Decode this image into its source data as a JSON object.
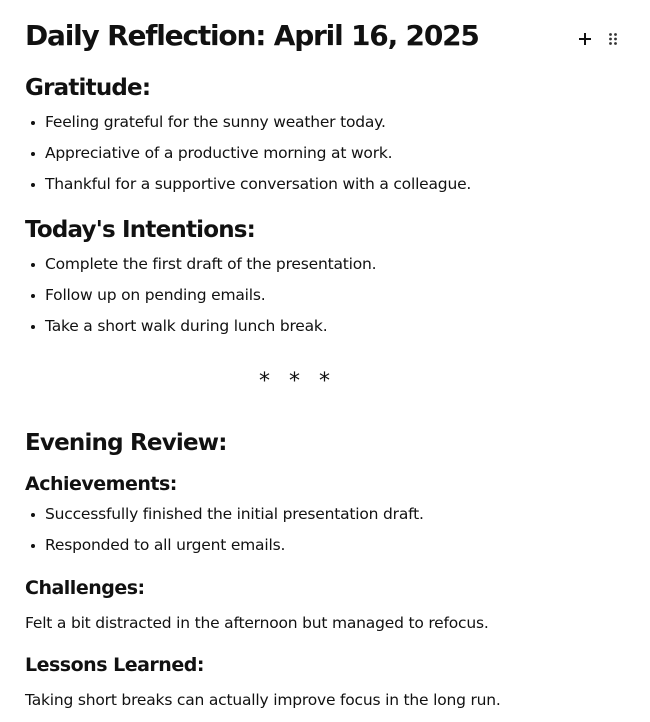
{
  "title": "Daily Reflection: April 16, 2025",
  "controls": {
    "add_glyph": "+",
    "drag_glyph": "⠿"
  },
  "gratitude": {
    "heading": "Gratitude:",
    "items": [
      "Feeling grateful for the sunny weather today.",
      "Appreciative of a productive morning at work.",
      "Thankful for a supportive conversation with a colleague."
    ]
  },
  "intentions": {
    "heading": "Today's Intentions:",
    "items": [
      "Complete the first draft of the presentation.",
      "Follow up on pending emails.",
      "Take a short walk during lunch break."
    ]
  },
  "divider": "* * *",
  "evening": {
    "heading": "Evening Review:",
    "achievements": {
      "heading": "Achievements:",
      "items": [
        "Successfully finished the initial presentation draft.",
        "Responded to all urgent emails."
      ]
    },
    "challenges": {
      "heading": "Challenges:",
      "text": "Felt a bit distracted in the afternoon but managed to refocus."
    },
    "lessons": {
      "heading": "Lessons Learned:",
      "text": "Taking short breaks can actually improve focus in the long run."
    }
  }
}
